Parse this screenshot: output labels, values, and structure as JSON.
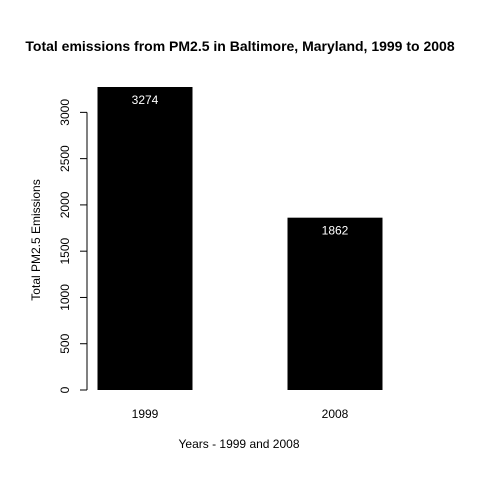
{
  "chart_data": {
    "type": "bar",
    "title": "Total emissions from PM2.5 in Baltimore, Maryland, 1999 to 2008",
    "xlabel": "Years - 1999 and 2008",
    "ylabel": "Total PM2.5 Emissions",
    "categories": [
      "1999",
      "2008"
    ],
    "values": [
      3274,
      1862
    ],
    "value_labels": [
      "3274",
      "1862"
    ],
    "ylim": [
      0,
      3274
    ],
    "yticks": [
      0,
      500,
      1000,
      1500,
      2000,
      2500,
      3000
    ],
    "ytick_labels": [
      "0",
      "500",
      "1000",
      "1500",
      "2000",
      "2500",
      "3000"
    ],
    "bar_color": "#000000",
    "label_color": "#ffffff",
    "grid": false
  }
}
